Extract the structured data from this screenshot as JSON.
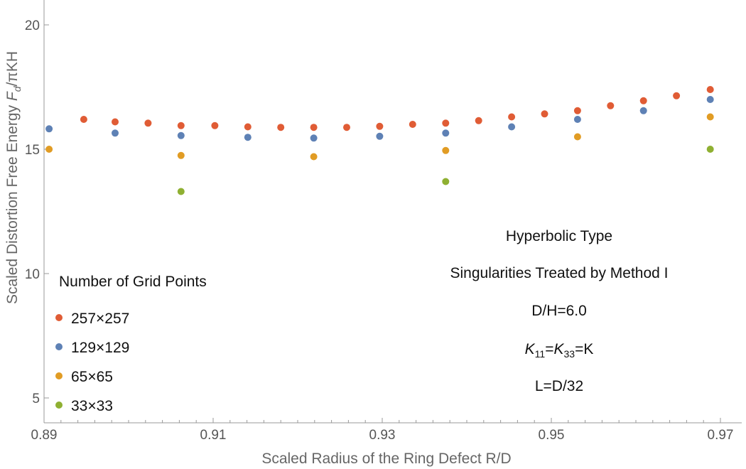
{
  "chart_data": {
    "type": "scatter",
    "title": "",
    "xlabel": "Scaled Radius of the Ring Defect R/D",
    "ylabel_parts": [
      "Scaled Distortion Free Energy ",
      "F",
      "d",
      "/πKH"
    ],
    "xlim": [
      0.89,
      0.97
    ],
    "ylim": [
      4,
      21
    ],
    "xticks": [
      "0.89",
      "0.91",
      "0.93",
      "0.95",
      "0.97"
    ],
    "yticks": [
      "5",
      "10",
      "15",
      "20"
    ],
    "legend_title": "Number of Grid Points",
    "legend_position": "left",
    "series": [
      {
        "name": "257×257",
        "color": "#e05c35",
        "x": [
          0.8947,
          0.8984,
          0.9023,
          0.9062,
          0.9102,
          0.9141,
          0.918,
          0.9219,
          0.9258,
          0.9297,
          0.9336,
          0.9375,
          0.9414,
          0.9453,
          0.9492,
          0.9531,
          0.957,
          0.9609,
          0.9648,
          0.9688
        ],
        "y": [
          16.2,
          16.1,
          16.05,
          15.95,
          15.95,
          15.9,
          15.88,
          15.88,
          15.88,
          15.92,
          16.0,
          16.05,
          16.15,
          16.3,
          16.42,
          16.55,
          16.75,
          16.95,
          17.15,
          17.4
        ]
      },
      {
        "name": "129×129",
        "color": "#5e81b5",
        "x": [
          0.8906,
          0.8984,
          0.9062,
          0.9141,
          0.9219,
          0.9297,
          0.9375,
          0.9453,
          0.9531,
          0.9609,
          0.9688
        ],
        "y": [
          15.82,
          15.65,
          15.55,
          15.48,
          15.45,
          15.52,
          15.65,
          15.9,
          16.2,
          16.55,
          17.0
        ]
      },
      {
        "name": "65×65",
        "color": "#e19c24",
        "x": [
          0.8906,
          0.9062,
          0.9219,
          0.9375,
          0.9531,
          0.9688
        ],
        "y": [
          15.0,
          14.75,
          14.7,
          14.95,
          15.5,
          16.3
        ]
      },
      {
        "name": "33×33",
        "color": "#8fb032",
        "x": [
          0.9062,
          0.9375,
          0.9688
        ],
        "y": [
          13.3,
          13.7,
          15.0
        ]
      }
    ],
    "annotations": {
      "line1": "Hyperbolic Type",
      "line2": "Singularities Treated by Method I",
      "line3": "D/H=6.0",
      "k_eq": {
        "k11": "K",
        "sub11": "11",
        "eq1": "=",
        "k33": "K",
        "sub33": "33",
        "rest": "=K"
      },
      "line5": "L=D/32"
    },
    "grid": false,
    "axis_color": "#888888"
  }
}
